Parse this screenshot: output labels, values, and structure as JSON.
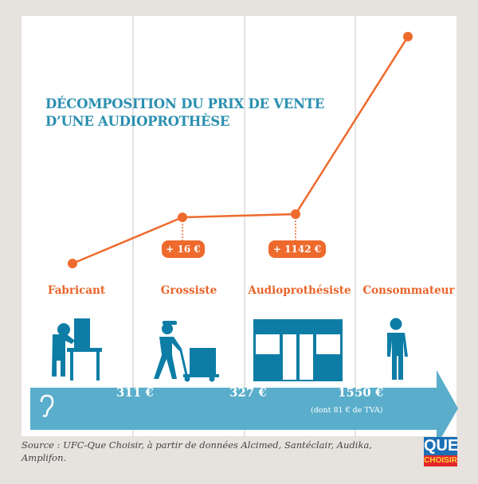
{
  "title": {
    "line1": "DÉCOMPOSITION DU PRIX DE VENTE",
    "line2": "D’UNE AUDIOPROTHÈSE"
  },
  "stages": [
    {
      "label": "Fabricant",
      "icon": "factory-worker-icon"
    },
    {
      "label": "Grossiste",
      "icon": "delivery-worker-icon"
    },
    {
      "label": "Audioprothésiste",
      "icon": "shop-icon"
    },
    {
      "label": "Consommateur",
      "icon": "person-icon"
    }
  ],
  "increments": [
    "+ 16 €",
    "+ 1142 €"
  ],
  "prices": [
    "311 €",
    "327 €",
    "1550 €"
  ],
  "vat_note": "(dont 81 € de TVA)",
  "price_values": [
    311,
    327,
    1550
  ],
  "source": "Source : UFC-Que Choisir, à partir de données Alcimed, Santéclair, Audika, Amplifon.",
  "logo": {
    "line1": "QUE",
    "line2": "CHOISIR"
  },
  "colors": {
    "orange": "#ee6a2c",
    "title_blue": "#2a8fb0",
    "arrow_blue": "#5aaecb",
    "icon_blue": "#0d7da6",
    "background": "#e6e2dd"
  }
}
